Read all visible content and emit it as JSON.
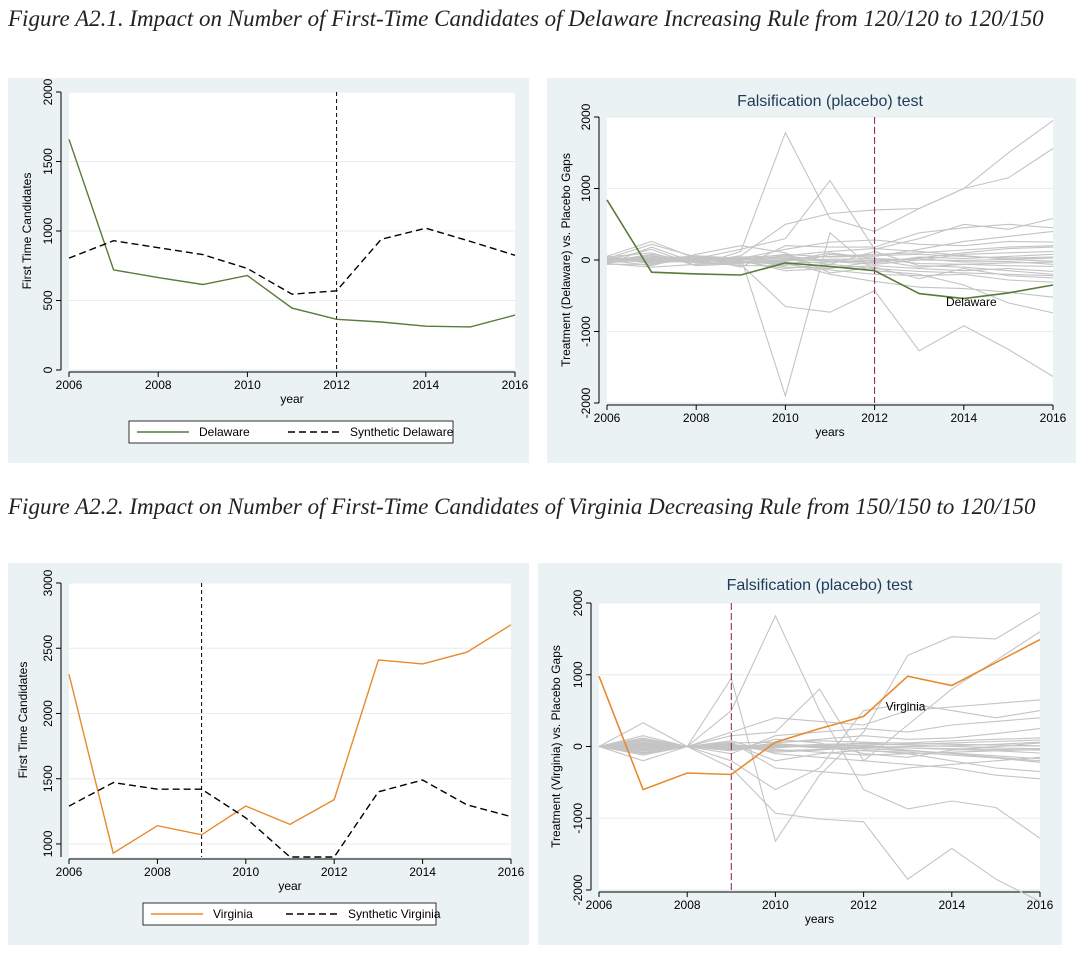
{
  "figures": [
    {
      "caption": "Figure A2.1. Impact on Number of First-Time Candidates of Delaware Increasing Rule from 120/120 to 120/150",
      "left": {
        "chart_data": {
          "type": "line",
          "x": [
            2006,
            2007,
            2008,
            2009,
            2010,
            2011,
            2012,
            2013,
            2014,
            2015,
            2016
          ],
          "series": [
            {
              "name": "Delaware",
              "style": "solid",
              "color": "#5a7a3a",
              "values": [
                1660,
                720,
                665,
                615,
                680,
                445,
                365,
                345,
                315,
                310,
                395
              ]
            },
            {
              "name": "Synthetic Delaware",
              "style": "dashed",
              "color": "#000000",
              "values": [
                805,
                930,
                880,
                830,
                730,
                545,
                570,
                940,
                1020,
                925,
                825
              ]
            }
          ],
          "xlabel": "year",
          "ylabel": "First Time Candidates",
          "xlim": [
            2006,
            2016
          ],
          "ylim": [
            0,
            2000
          ],
          "xticks": [
            "2006",
            "2008",
            "2010",
            "2012",
            "2014",
            "2016"
          ],
          "yticks": [
            "0",
            "500",
            "1000",
            "1500",
            "2000"
          ],
          "vline": 2012,
          "grid": true,
          "legend": "bottom"
        }
      },
      "right": {
        "chart_data": {
          "type": "line",
          "title": "Falsification (placebo) test",
          "x": [
            2006,
            2007,
            2008,
            2009,
            2010,
            2011,
            2012,
            2013,
            2014,
            2015,
            2016
          ],
          "treated": {
            "name": "Delaware",
            "color": "#5a7a3a",
            "values": [
              840,
              -170,
              -195,
              -210,
              -40,
              -90,
              -150,
              -470,
              -540,
              -460,
              -350
            ]
          },
          "placebos": [
            [
              0,
              150,
              -80,
              120,
              1780,
              580,
              400,
              720,
              1000,
              1150,
              1560
            ],
            [
              -60,
              180,
              -40,
              60,
              500,
              650,
              700,
              720,
              1000,
              1500,
              1950
            ],
            [
              30,
              -50,
              20,
              -60,
              -650,
              -730,
              -430,
              -1270,
              -920,
              -1250,
              -1630
            ],
            [
              -20,
              80,
              -20,
              40,
              -1900,
              380,
              -150,
              -200,
              -350,
              -600,
              -740
            ],
            [
              50,
              260,
              20,
              150,
              300,
              1110,
              150,
              300,
              500,
              430,
              580
            ],
            [
              -50,
              -100,
              -60,
              -40,
              -30,
              -200,
              -300,
              -380,
              -400,
              -450,
              -520
            ],
            [
              20,
              220,
              40,
              -100,
              200,
              180,
              180,
              380,
              450,
              500,
              450
            ],
            [
              0,
              -80,
              80,
              200,
              100,
              -180,
              -100,
              -260,
              -120,
              -220,
              -250
            ],
            [
              -30,
              60,
              -30,
              -80,
              -80,
              80,
              50,
              150,
              260,
              330,
              400
            ],
            [
              20,
              30,
              50,
              -20,
              -120,
              -60,
              120,
              -80,
              -100,
              -150,
              -200
            ],
            [
              -60,
              -60,
              20,
              20,
              150,
              250,
              280,
              220,
              200,
              260,
              250
            ],
            [
              40,
              100,
              -80,
              -50,
              60,
              -20,
              -60,
              0,
              80,
              100,
              120
            ],
            [
              -10,
              30,
              10,
              -30,
              -60,
              -140,
              -200,
              -220,
              -200,
              -280,
              -310
            ],
            [
              10,
              -30,
              60,
              20,
              20,
              50,
              80,
              100,
              140,
              180,
              200
            ],
            [
              -40,
              10,
              -20,
              30,
              -100,
              -110,
              -80,
              -120,
              -150,
              -120,
              -160
            ],
            [
              30,
              -10,
              40,
              20,
              40,
              0,
              -40,
              40,
              20,
              50,
              80
            ],
            [
              0,
              60,
              -40,
              -20,
              -20,
              100,
              20,
              -50,
              -60,
              -80,
              -90
            ],
            [
              50,
              -40,
              0,
              10,
              80,
              40,
              60,
              80,
              50,
              30,
              40
            ],
            [
              -20,
              20,
              30,
              -40,
              -40,
              -30,
              0,
              -100,
              -60,
              -40,
              -30
            ],
            [
              10,
              0,
              -10,
              30,
              10,
              -60,
              -120,
              -160,
              -180,
              -200,
              -220
            ],
            [
              -30,
              40,
              20,
              -10,
              -150,
              -120,
              -20,
              30,
              100,
              160,
              180
            ],
            [
              20,
              -20,
              -30,
              40,
              60,
              120,
              160,
              120,
              60,
              10,
              -20
            ],
            [
              0,
              10,
              10,
              0,
              -10,
              10,
              20,
              0,
              -10,
              10,
              30
            ],
            [
              -10,
              -20,
              0,
              10,
              20,
              -20,
              -10,
              20,
              -30,
              -20,
              -60
            ]
          ],
          "placebo_color": "#c4c4c4",
          "xlabel": "years",
          "ylabel": "Treatment (Delaware) vs. Placebo Gaps",
          "xlim": [
            2006,
            2016
          ],
          "ylim": [
            -2000,
            2000
          ],
          "xticks": [
            "2006",
            "2008",
            "2010",
            "2012",
            "2014",
            "2016"
          ],
          "yticks": [
            "-2000",
            "-1000",
            "0",
            "1000",
            "2000"
          ],
          "vline": 2012,
          "vline_color": "#8a1a5a",
          "annotation": {
            "text": "Delaware",
            "x": 2013.6,
            "y": -640
          }
        }
      }
    },
    {
      "caption": "Figure A2.2. Impact on Number of First-Time Candidates of Virginia Decreasing Rule from 150/150 to 120/150",
      "left": {
        "chart_data": {
          "type": "line",
          "x": [
            2006,
            2007,
            2008,
            2009,
            2010,
            2011,
            2012,
            2013,
            2014,
            2015,
            2016
          ],
          "series": [
            {
              "name": "Virginia",
              "style": "solid",
              "color": "#e88a2e",
              "values": [
                2300,
                930,
                1140,
                1070,
                1290,
                1150,
                1340,
                2410,
                2380,
                2470,
                2680
              ]
            },
            {
              "name": "Synthetic Virginia",
              "style": "dashed",
              "color": "#000000",
              "values": [
                1290,
                1470,
                1420,
                1420,
                1200,
                900,
                900,
                1400,
                1490,
                1300,
                1210
              ]
            }
          ],
          "xlabel": "year",
          "ylabel": "First Time Candidates",
          "xlim": [
            2006,
            2016
          ],
          "ylim": [
            900,
            3000
          ],
          "xticks": [
            "2006",
            "2008",
            "2010",
            "2012",
            "2014",
            "2016"
          ],
          "yticks": [
            "1000",
            "1500",
            "2000",
            "2500",
            "3000"
          ],
          "vline": 2009,
          "grid": true,
          "legend": "bottom"
        }
      },
      "right": {
        "chart_data": {
          "type": "line",
          "title": "Falsification (placebo) test",
          "x": [
            2006,
            2007,
            2008,
            2009,
            2010,
            2011,
            2012,
            2013,
            2014,
            2015,
            2016
          ],
          "treated": {
            "name": "Virginia",
            "color": "#e88a2e",
            "values": [
              980,
              -600,
              -370,
              -390,
              60,
              250,
              420,
              980,
              850,
              1170,
              1490
            ]
          },
          "placebos": [
            [
              0,
              150,
              0,
              950,
              -1320,
              -400,
              200,
              1270,
              1530,
              1500,
              1870
            ],
            [
              0,
              -100,
              0,
              500,
              1820,
              500,
              -600,
              -870,
              -760,
              -850,
              -1280
            ],
            [
              0,
              100,
              0,
              -300,
              -930,
              -1010,
              -1050,
              -1850,
              -1420,
              -1850,
              -2160
            ],
            [
              0,
              80,
              0,
              150,
              200,
              800,
              -200,
              300,
              800,
              1200,
              1600
            ],
            [
              0,
              -50,
              0,
              -200,
              -600,
              -300,
              500,
              600,
              500,
              400,
              500
            ],
            [
              0,
              330,
              0,
              200,
              400,
              350,
              300,
              500,
              550,
              600,
              650
            ],
            [
              0,
              -200,
              0,
              60,
              -300,
              -350,
              -400,
              -300,
              -250,
              -200,
              -150
            ],
            [
              0,
              50,
              0,
              -100,
              150,
              200,
              250,
              200,
              300,
              350,
              400
            ],
            [
              0,
              -80,
              0,
              40,
              -200,
              -100,
              -50,
              -100,
              -200,
              -300,
              -350
            ],
            [
              0,
              120,
              0,
              -50,
              100,
              50,
              -100,
              -150,
              -50,
              0,
              50
            ],
            [
              0,
              -30,
              0,
              80,
              -100,
              -150,
              -200,
              -250,
              -300,
              -400,
              -450
            ],
            [
              0,
              60,
              0,
              -30,
              50,
              100,
              150,
              100,
              120,
              180,
              250
            ],
            [
              0,
              -120,
              0,
              20,
              -80,
              -50,
              0,
              -50,
              -100,
              -150,
              -200
            ],
            [
              0,
              20,
              0,
              -60,
              40,
              0,
              50,
              50,
              80,
              100,
              120
            ],
            [
              0,
              -60,
              0,
              30,
              -40,
              -80,
              -120,
              -100,
              -80,
              -60,
              -40
            ],
            [
              0,
              90,
              0,
              10,
              0,
              30,
              40,
              20,
              0,
              -20,
              -30
            ],
            [
              0,
              -20,
              0,
              -20,
              20,
              -20,
              -60,
              -80,
              -120,
              -160,
              -220
            ],
            [
              0,
              40,
              0,
              50,
              60,
              80,
              60,
              40,
              30,
              20,
              10
            ],
            [
              0,
              -40,
              0,
              -40,
              -20,
              20,
              10,
              -20,
              -40,
              -60,
              -90
            ],
            [
              0,
              10,
              0,
              20,
              -60,
              -40,
              -20,
              0,
              10,
              30,
              60
            ],
            [
              0,
              -90,
              0,
              -10,
              30,
              -10,
              -30,
              -60,
              -90,
              -130,
              -170
            ],
            [
              0,
              30,
              0,
              5,
              -10,
              10,
              20,
              30,
              50,
              70,
              90
            ],
            [
              0,
              -10,
              0,
              -5,
              10,
              0,
              -10,
              -20,
              -30,
              -40,
              -50
            ]
          ],
          "placebo_color": "#c4c4c4",
          "xlabel": "years",
          "ylabel": "Treatment (Virginia) vs. Placebo Gaps",
          "xlim": [
            2006,
            2016
          ],
          "ylim": [
            -2000,
            2000
          ],
          "xticks": [
            "2006",
            "2008",
            "2010",
            "2012",
            "2014",
            "2016"
          ],
          "yticks": [
            "-2000",
            "-1000",
            "0",
            "1000",
            "2000"
          ],
          "vline": 2009,
          "vline_color": "#8a1a5a",
          "annotation": {
            "text": "Virginia",
            "x": 2012.5,
            "y": 500
          }
        }
      }
    }
  ]
}
